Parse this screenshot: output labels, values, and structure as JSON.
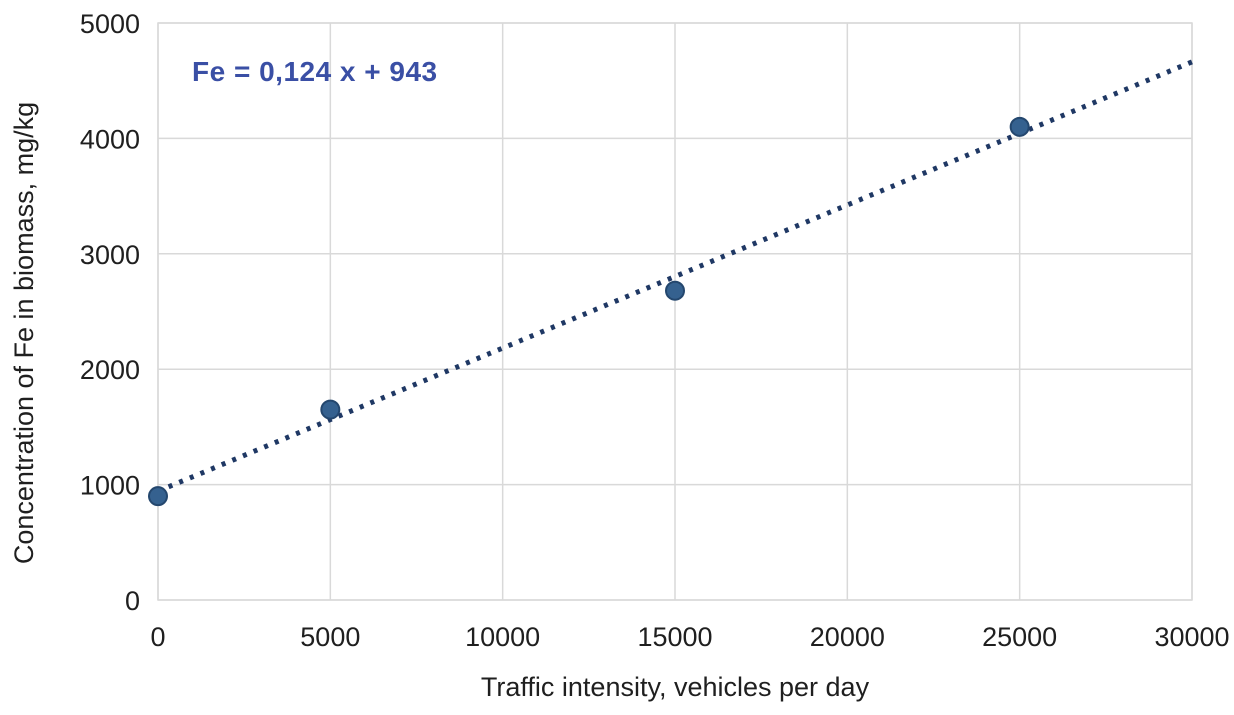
{
  "chart_data": {
    "type": "scatter",
    "title": "",
    "xlabel": "Traffic intensity, vehicles per day",
    "ylabel": "Concentration of Fe in biomass, mg/kg",
    "equation": "Fe = 0,124 x + 943",
    "points": [
      {
        "x": 0,
        "y": 900
      },
      {
        "x": 5000,
        "y": 1650
      },
      {
        "x": 15000,
        "y": 2680
      },
      {
        "x": 25000,
        "y": 4100
      }
    ],
    "trendline": {
      "slope": 0.124,
      "intercept": 943,
      "style": "dotted",
      "x_start": 0,
      "x_end": 30000
    },
    "x_ticks": [
      0,
      5000,
      10000,
      15000,
      20000,
      25000,
      30000
    ],
    "y_ticks": [
      0,
      1000,
      2000,
      3000,
      4000,
      5000
    ],
    "xlim": [
      0,
      30000
    ],
    "ylim": [
      0,
      5000
    ],
    "grid": true,
    "legend": "none",
    "colors": {
      "marker_fill": "#35618f",
      "marker_border": "#24476e",
      "trendline": "#1f3864",
      "equation_text": "#3a4fa5",
      "gridline": "#d9d9d9",
      "axis_text": "#1f1f1f",
      "background": "#ffffff"
    }
  }
}
